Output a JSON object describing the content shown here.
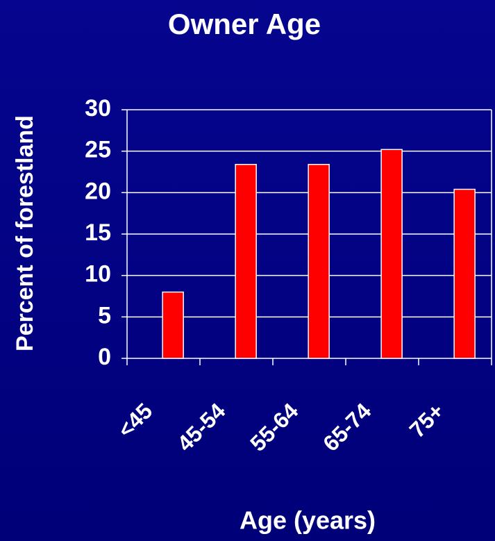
{
  "chart_data": {
    "type": "bar",
    "title": "Owner Age",
    "x_label": "Age (years)",
    "y_label": "Percent of forestland",
    "categories": [
      "<45",
      "45-54",
      "55-64",
      "65-74",
      "75+"
    ],
    "values": [
      8,
      23.4,
      23.4,
      25.2,
      20.4
    ],
    "color": "#ff0000",
    "ylim": [
      0,
      30
    ],
    "yticks": [
      0,
      5,
      10,
      15,
      20,
      25,
      30
    ],
    "grid": true
  }
}
